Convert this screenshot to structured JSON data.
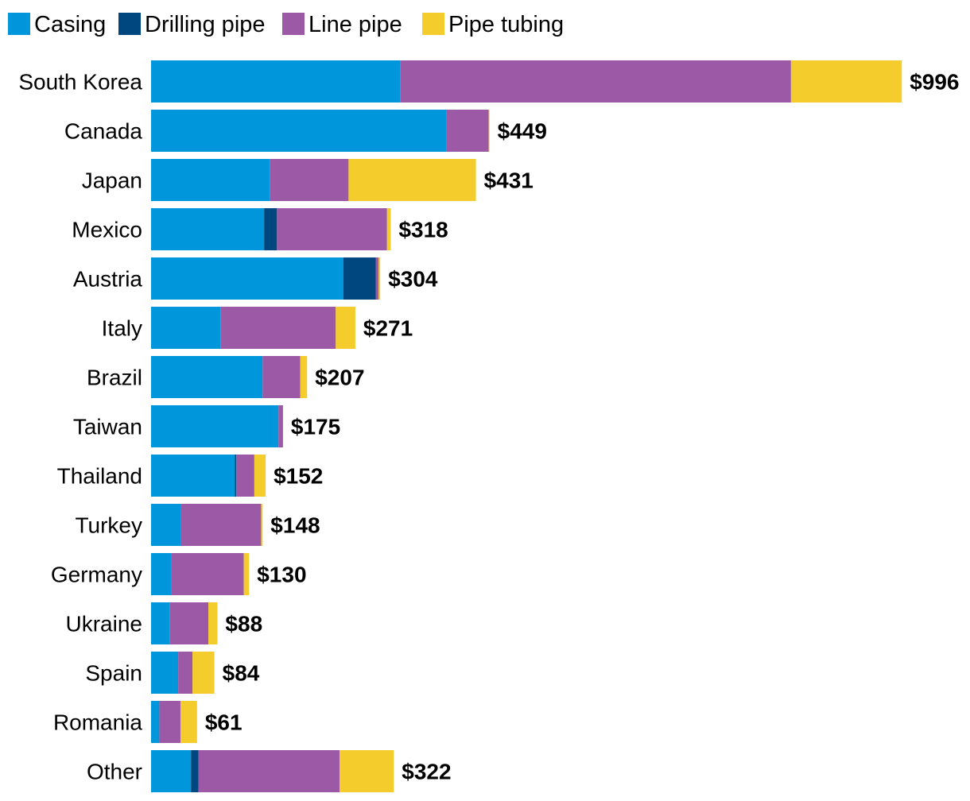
{
  "chart_data": {
    "type": "bar",
    "orientation": "horizontal",
    "stacked": true,
    "title": "",
    "xlabel": "",
    "ylabel": "",
    "unit_prefix": "$",
    "grid": false,
    "legend_position": "top-left",
    "categories": [
      "South Korea",
      "Canada",
      "Japan",
      "Mexico",
      "Austria",
      "Italy",
      "Brazil",
      "Taiwan",
      "Thailand",
      "Turkey",
      "Germany",
      "Ukraine",
      "Spain",
      "Romania",
      "Other"
    ],
    "series": [
      {
        "name": "Casing",
        "color": "#0096db",
        "values": [
          331,
          392,
          158,
          150,
          255,
          92,
          148,
          169,
          111,
          40,
          27,
          25,
          36,
          11,
          53
        ]
      },
      {
        "name": "Drilling pipe",
        "color": "#00467f",
        "values": [
          0,
          0,
          0,
          17,
          43,
          0,
          0,
          0,
          2,
          0,
          0,
          0,
          0,
          0,
          10
        ]
      },
      {
        "name": "Line pipe",
        "color": "#9b59a6",
        "values": [
          518,
          56,
          104,
          146,
          4,
          153,
          50,
          6,
          24,
          106,
          96,
          51,
          19,
          28,
          187
        ]
      },
      {
        "name": "Pipe tubing",
        "color": "#f4cc2c",
        "values": [
          147,
          1,
          169,
          5,
          2,
          26,
          9,
          0,
          15,
          2,
          7,
          12,
          29,
          22,
          72
        ]
      }
    ],
    "totals": [
      996,
      449,
      431,
      318,
      304,
      271,
      207,
      175,
      152,
      148,
      130,
      88,
      84,
      61,
      322
    ],
    "total_labels": [
      "$996",
      "$449",
      "$431",
      "$318",
      "$304",
      "$271",
      "$207",
      "$175",
      "$152",
      "$148",
      "$130",
      "$88",
      "$84",
      "$61",
      "$322"
    ],
    "xlim": [
      0,
      1000
    ]
  }
}
